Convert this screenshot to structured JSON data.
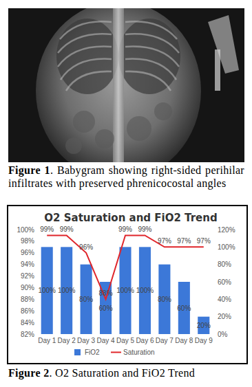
{
  "figure_1": {
    "label": "Figure 1",
    "caption": ". Babygram showing right-sided perihilar infiltrates with preserved phrenicocostal angles"
  },
  "chart_data": {
    "type": "bar",
    "title": "O2 Saturation and FiO2 Trend",
    "categories": [
      "Day 1",
      "Day 2",
      "Day 3",
      "Day 4",
      "Day 5",
      "Day 6",
      "Day 7",
      "Day 8",
      "Day 9"
    ],
    "series": [
      {
        "name": "FiO2",
        "type": "bar",
        "color": "#3c78d8",
        "axis": "y2",
        "values": [
          100,
          100,
          80,
          60,
          100,
          100,
          80,
          60,
          20
        ],
        "value_labels": [
          "100%",
          "100%",
          "80%",
          "60%",
          "100%",
          "100%",
          "80%",
          "60%",
          "20%"
        ]
      },
      {
        "name": "Saturation",
        "type": "line",
        "color": "#e0262b",
        "values": [
          99,
          99,
          96,
          88,
          99,
          99,
          97,
          97,
          97
        ],
        "value_labels": [
          "99%",
          "99%",
          "96%",
          "88%",
          "99%",
          "99%",
          "97%",
          "97%",
          "97%"
        ]
      }
    ],
    "ylim": [
      82,
      100
    ],
    "yticks": [
      {
        "value": 82,
        "label": "82%"
      },
      {
        "value": 84,
        "label": "84%"
      },
      {
        "value": 86,
        "label": "86%"
      },
      {
        "value": 88,
        "label": "88%"
      },
      {
        "value": 90,
        "label": "90%"
      },
      {
        "value": 92,
        "label": "92%"
      },
      {
        "value": 94,
        "label": "94%"
      },
      {
        "value": 96,
        "label": "96%"
      },
      {
        "value": 98,
        "label": "98%"
      },
      {
        "value": 100,
        "label": "100%"
      }
    ],
    "y2lim": [
      0,
      120
    ],
    "y2ticks": [
      {
        "value": 0,
        "label": "0%"
      },
      {
        "value": 20,
        "label": "20%"
      },
      {
        "value": 40,
        "label": "40%"
      },
      {
        "value": 60,
        "label": "60%"
      },
      {
        "value": 80,
        "label": "80%"
      },
      {
        "value": 100,
        "label": "100%"
      },
      {
        "value": 120,
        "label": "120%"
      }
    ],
    "grid": false,
    "legend": "bottom",
    "data_labels": true
  },
  "figure_2": {
    "label": "Figure 2",
    "caption": ". O2 Saturation and FiO2 Trend"
  }
}
